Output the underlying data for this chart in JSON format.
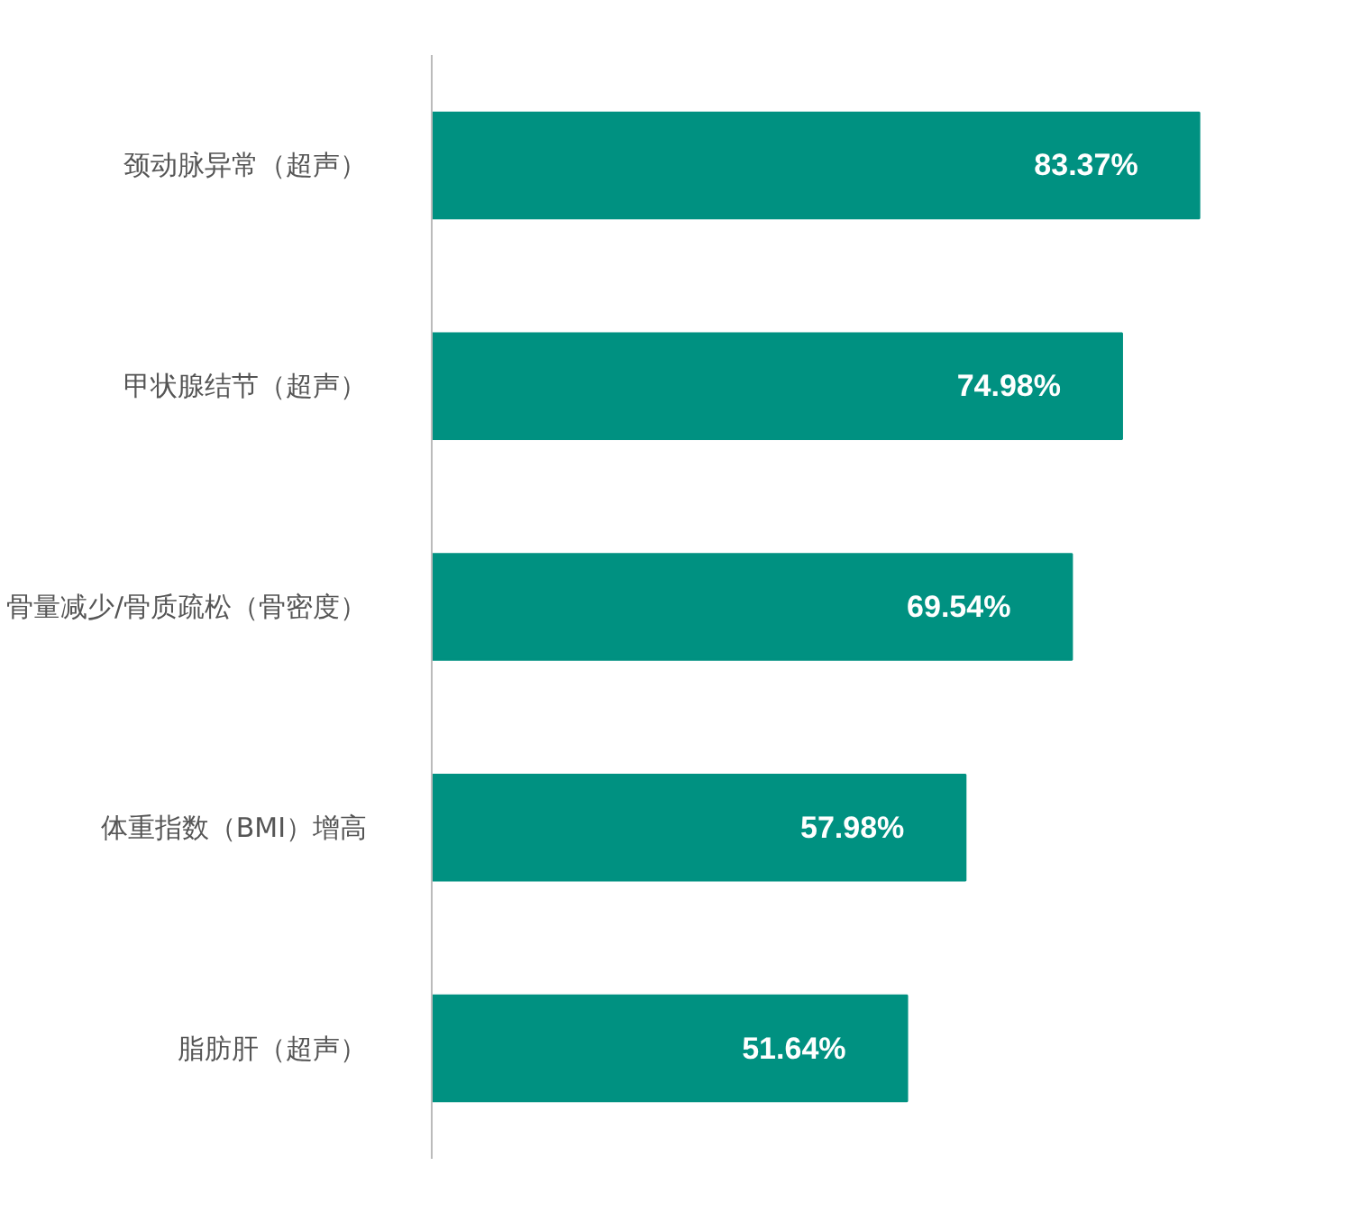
{
  "chart_data": {
    "type": "bar",
    "orientation": "horizontal",
    "categories": [
      "颈动脉异常（超声）",
      "甲状腺结节（超声）",
      "骨量减少/骨质疏松（骨密度）",
      "体重指数（BMI）增高",
      "脂肪肝（超声）"
    ],
    "values": [
      83.37,
      74.98,
      69.54,
      57.98,
      51.64
    ],
    "value_labels": [
      "83.37%",
      "74.98%",
      "69.54%",
      "57.98%",
      "51.64%"
    ],
    "color": "#009181",
    "tick_labels": "y",
    "grid": false
  }
}
